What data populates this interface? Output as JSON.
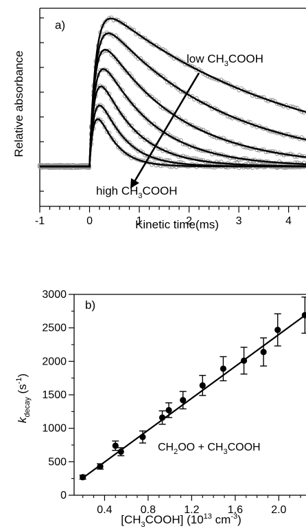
{
  "chart_data": [
    {
      "type": "line",
      "panel_label": "a)",
      "xlabel": "Kinetic time(ms)",
      "ylabel": "Relative absorbance",
      "xlim": [
        -1,
        4.35
      ],
      "x_ticks": [
        "-1",
        "0",
        "1",
        "2",
        "3",
        "4"
      ],
      "y_tick_labels_shown": false,
      "series": [
        {
          "amplitude": 0.99,
          "rise": 0.12,
          "decay": 3.8
        },
        {
          "amplitude": 0.95,
          "rise": 0.12,
          "decay": 2.4
        },
        {
          "amplitude": 0.89,
          "rise": 0.11,
          "decay": 1.55
        },
        {
          "amplitude": 0.82,
          "rise": 0.11,
          "decay": 1.05
        },
        {
          "amplitude": 0.74,
          "rise": 0.1,
          "decay": 0.72
        },
        {
          "amplitude": 0.66,
          "rise": 0.1,
          "decay": 0.5
        },
        {
          "amplitude": 0.58,
          "rise": 0.09,
          "decay": 0.36
        }
      ],
      "annotations": {
        "top": {
          "prefix": "low CH",
          "sub": "3",
          "suffix": "COOH"
        },
        "bottom": {
          "prefix": "high CH",
          "sub": "3",
          "suffix": "COOH"
        }
      },
      "colors": {
        "data": "#999999",
        "fit": "#000000"
      }
    },
    {
      "type": "scatter",
      "panel_label": "b)",
      "xlabel": {
        "pre": "[CH",
        "sub": "3",
        "mid": "COOH] (10",
        "sup1": "13",
        "mid2": " cm",
        "sup2": "-3",
        "post": ")"
      },
      "ylabel": {
        "k": "k",
        "sub": "decay",
        "mid": " (s",
        "sup": "-1",
        "post": ")"
      },
      "xlim": [
        0.12,
        2.25
      ],
      "ylim": [
        0,
        3000
      ],
      "x_ticks": [
        "0.4",
        "0.8",
        "1.2",
        "1.6",
        "2.0"
      ],
      "y_ticks": [
        "0",
        "500",
        "1000",
        "1500",
        "2000",
        "2500",
        "3000"
      ],
      "x": [
        0.2,
        0.36,
        0.5,
        0.55,
        0.75,
        0.93,
        0.99,
        1.12,
        1.3,
        1.49,
        1.68,
        1.86,
        1.99,
        2.24
      ],
      "y": [
        270,
        430,
        740,
        650,
        870,
        1160,
        1270,
        1420,
        1640,
        1890,
        2010,
        2140,
        2470,
        2690
      ],
      "yerr": [
        30,
        40,
        70,
        60,
        90,
        100,
        110,
        130,
        150,
        180,
        200,
        210,
        240,
        270
      ],
      "fit": {
        "slope": 1190,
        "intercept": 20
      },
      "annotation": {
        "pre": "CH",
        "sub1": "2",
        "mid": "OO + CH",
        "sub2": "3",
        "post": "COOH"
      }
    }
  ]
}
